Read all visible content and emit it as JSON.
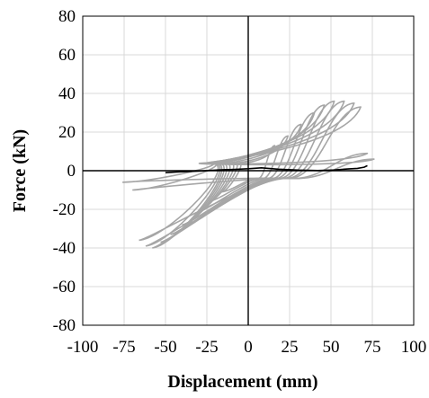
{
  "chart_data": {
    "type": "line",
    "title": "",
    "xlabel": "Displacement (mm)",
    "ylabel": "Force (kN)",
    "xlim": [
      -100,
      100
    ],
    "ylim": [
      -80,
      80
    ],
    "x_ticks": [
      -100,
      -75,
      -50,
      -25,
      0,
      25,
      50,
      75,
      100
    ],
    "x_tick_labels": [
      "-100",
      "-75",
      "-50",
      "-25",
      "0",
      "25",
      "50",
      "75",
      "100"
    ],
    "y_ticks": [
      -80,
      -60,
      -40,
      -20,
      0,
      20,
      40,
      60,
      80
    ],
    "y_tick_labels": [
      "-80",
      "-60",
      "-40",
      "-20",
      "0",
      "20",
      "40",
      "60",
      "80"
    ],
    "grid": true,
    "legend": "none",
    "series": [
      {
        "color": "#a6a6a6",
        "loops": [
          {
            "max_disp": 16,
            "max_force": 13,
            "min_disp": -16,
            "min_force": -11
          },
          {
            "max_disp": 24,
            "max_force": 18,
            "min_disp": -24,
            "min_force": -16
          },
          {
            "max_disp": 32,
            "max_force": 24,
            "min_disp": -32,
            "min_force": -22
          },
          {
            "max_disp": 40,
            "max_force": 30,
            "min_disp": -40,
            "min_force": -28
          },
          {
            "max_disp": 46,
            "max_force": 34,
            "min_disp": -47,
            "min_force": -33
          },
          {
            "max_disp": 52,
            "max_force": 36,
            "min_disp": -53,
            "min_force": -37
          },
          {
            "max_disp": 58,
            "max_force": 36,
            "min_disp": -58,
            "min_force": -40
          },
          {
            "max_disp": 64,
            "max_force": 35,
            "min_disp": -62,
            "min_force": -39
          },
          {
            "max_disp": 68,
            "max_force": 33,
            "min_disp": -66,
            "min_force": -36
          },
          {
            "max_disp": 72,
            "max_force": 9,
            "min_disp": -70,
            "min_force": -10
          },
          {
            "max_disp": 76,
            "max_force": 6,
            "min_disp": -76,
            "min_force": -6
          }
        ]
      },
      {
        "color": "#000000",
        "points": [
          [
            -50,
            -1
          ],
          [
            -42,
            -0.6
          ],
          [
            -30,
            -0.2
          ],
          [
            -18,
            0.4
          ],
          [
            -8,
            0.7
          ],
          [
            0,
            1
          ],
          [
            8,
            1.5
          ],
          [
            18,
            0.8
          ],
          [
            30,
            0.3
          ],
          [
            42,
            0.1
          ],
          [
            52,
            0.4
          ],
          [
            60,
            0.9
          ],
          [
            66,
            1.2
          ],
          [
            70,
            1.8
          ],
          [
            72,
            2.6
          ]
        ]
      }
    ]
  }
}
